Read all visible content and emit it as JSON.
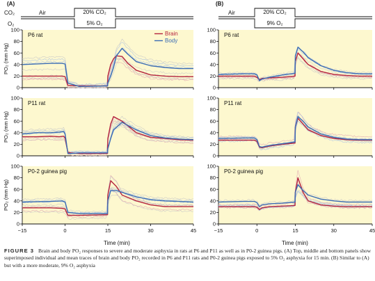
{
  "figure": {
    "panel_labels": [
      "(A)",
      "(B)"
    ],
    "protocol": {
      "a": {
        "gas_top": "CO₂",
        "gas_bottom": "O₂",
        "before_label": "Air",
        "co2_label": "20% CO₂",
        "o2_label": "5% O₂"
      },
      "b": {
        "before_label": "Air",
        "co2_label": "20% CO₂",
        "o2_label": "9% O₂"
      }
    },
    "y_axis_label": "PO₂ (mm Hg)",
    "x_axis_label": "Time (min)",
    "x_ticks": [
      "−15",
      "0",
      "15",
      "30",
      "45"
    ],
    "y_ticks": [
      "0",
      "20",
      "40",
      "60",
      "80",
      "100"
    ],
    "legend": {
      "brain": "Brain",
      "body": "Body"
    },
    "row_titles": [
      "P6 rat",
      "P11 rat",
      "P0-2 guinea pig"
    ],
    "colors": {
      "panel_bg": "#fdf8cf",
      "brain": "#b5243e",
      "body": "#3a6cb4",
      "brain_faint": "#e0a6b1",
      "body_faint": "#a9c1e3",
      "faint_gray": "#c8c8c8"
    }
  },
  "caption": {
    "label": "FIGURE 3",
    "text": "Brain and body PO₂ responses to severe and moderate asphyxia in rats at P6 and P11 as well as in P0-2 guinea pigs. (A) Top, middle and bottom panels show superimposed individual and mean traces of brain and body PO₂ recorded in P6 and P11 rats and P0-2 guinea pigs exposed to 5% O₂ asphyxia for 15 min. (B) Similar to (A) but with a more moderate, 9% O₂ asphyxia"
  },
  "chart_data": [
    {
      "type": "line",
      "panel": "A",
      "title": "P6 rat",
      "xlabel": "Time (min)",
      "ylabel": "PO₂ (mm Hg)",
      "xlim": [
        -15,
        45
      ],
      "ylim": [
        0,
        100
      ],
      "legend": "top-right",
      "series": [
        {
          "name": "Brain",
          "x": [
            -15,
            -5,
            -1,
            0,
            1,
            5,
            14.9,
            15,
            16,
            17,
            18,
            20,
            22,
            25,
            30,
            35,
            40,
            45
          ],
          "y": [
            20,
            20,
            20,
            19,
            4,
            3,
            3,
            20,
            40,
            50,
            55,
            54,
            42,
            30,
            22,
            20,
            19,
            19
          ]
        },
        {
          "name": "Body",
          "x": [
            -15,
            -5,
            -1,
            0,
            1,
            5,
            14.9,
            15,
            16,
            17,
            18,
            20,
            22,
            25,
            30,
            35,
            40,
            45
          ],
          "y": [
            40,
            42,
            42,
            41,
            8,
            2,
            3,
            8,
            20,
            35,
            55,
            68,
            58,
            45,
            38,
            35,
            33,
            33
          ]
        }
      ]
    },
    {
      "type": "line",
      "panel": "A",
      "title": "P11 rat",
      "xlabel": "Time (min)",
      "ylabel": "PO₂ (mm Hg)",
      "xlim": [
        -15,
        45
      ],
      "ylim": [
        0,
        100
      ],
      "series": [
        {
          "name": "Brain",
          "x": [
            -15,
            -10,
            -5,
            -2,
            -0.5,
            0,
            1,
            2,
            5,
            14.9,
            15,
            16,
            17,
            20,
            25,
            30,
            35,
            40,
            45
          ],
          "y": [
            33,
            33,
            34,
            33,
            34,
            31,
            6,
            5,
            4,
            4,
            30,
            55,
            68,
            60,
            40,
            32,
            30,
            28,
            27
          ]
        },
        {
          "name": "Body",
          "x": [
            -15,
            -10,
            -5,
            -2,
            -0.5,
            0,
            1,
            2,
            5,
            14.9,
            15,
            16,
            17,
            20,
            25,
            30,
            35,
            40,
            45
          ],
          "y": [
            38,
            40,
            40,
            41,
            42,
            38,
            4,
            4,
            5,
            5,
            12,
            30,
            45,
            58,
            45,
            35,
            31,
            29,
            28
          ]
        }
      ]
    },
    {
      "type": "line",
      "panel": "A",
      "title": "P0-2 guinea pig",
      "xlabel": "Time (min)",
      "ylabel": "PO₂ (mm Hg)",
      "xlim": [
        -15,
        45
      ],
      "ylim": [
        0,
        100
      ],
      "series": [
        {
          "name": "Brain",
          "x": [
            -15,
            -5,
            -1,
            0,
            1,
            5,
            14.9,
            15,
            16,
            18,
            20,
            25,
            30,
            35,
            40,
            45
          ],
          "y": [
            28,
            28,
            27,
            26,
            15,
            15,
            16,
            50,
            75,
            65,
            50,
            40,
            33,
            30,
            30,
            30
          ]
        },
        {
          "name": "Body",
          "x": [
            -15,
            -5,
            -1,
            0,
            1,
            5,
            14.9,
            15,
            16,
            18,
            20,
            25,
            30,
            35,
            40,
            45
          ],
          "y": [
            38,
            39,
            40,
            38,
            20,
            18,
            18,
            40,
            58,
            58,
            55,
            47,
            42,
            40,
            39,
            38
          ]
        }
      ]
    },
    {
      "type": "line",
      "panel": "B",
      "title": "P6 rat",
      "xlabel": "Time (min)",
      "ylabel": "PO₂ (mm Hg)",
      "xlim": [
        -15,
        45
      ],
      "ylim": [
        0,
        100
      ],
      "series": [
        {
          "name": "Brain",
          "x": [
            -15,
            -5,
            -1,
            0,
            1,
            2,
            5,
            10,
            14.9,
            15,
            16,
            18,
            20,
            25,
            30,
            35,
            40,
            45
          ],
          "y": [
            20,
            20,
            20,
            18,
            14,
            16,
            17,
            18,
            20,
            45,
            60,
            50,
            40,
            28,
            23,
            21,
            20,
            20
          ]
        },
        {
          "name": "Body",
          "x": [
            -15,
            -5,
            -1,
            0,
            1,
            2,
            5,
            10,
            14.9,
            15,
            16,
            18,
            20,
            25,
            30,
            35,
            40,
            45
          ],
          "y": [
            23,
            24,
            24,
            22,
            12,
            15,
            18,
            22,
            25,
            55,
            70,
            62,
            52,
            38,
            30,
            26,
            24,
            24
          ]
        }
      ]
    },
    {
      "type": "line",
      "panel": "B",
      "title": "P11 rat",
      "xlabel": "Time (min)",
      "ylabel": "PO₂ (mm Hg)",
      "xlim": [
        -15,
        45
      ],
      "ylim": [
        0,
        100
      ],
      "series": [
        {
          "name": "Brain",
          "x": [
            -15,
            -5,
            -1,
            0,
            1,
            2,
            5,
            10,
            14.9,
            15,
            16,
            18,
            20,
            25,
            30,
            35,
            40,
            45
          ],
          "y": [
            27,
            27,
            27,
            25,
            15,
            14,
            17,
            20,
            22,
            50,
            65,
            55,
            45,
            35,
            30,
            28,
            27,
            27
          ]
        },
        {
          "name": "Body",
          "x": [
            -15,
            -5,
            -1,
            0,
            1,
            2,
            5,
            10,
            14.9,
            15,
            16,
            18,
            20,
            25,
            30,
            35,
            40,
            45
          ],
          "y": [
            30,
            31,
            31,
            28,
            16,
            15,
            18,
            21,
            24,
            50,
            68,
            60,
            50,
            38,
            32,
            29,
            28,
            28
          ]
        }
      ]
    },
    {
      "type": "line",
      "panel": "B",
      "title": "P0-2 guinea pig",
      "xlabel": "Time (min)",
      "ylabel": "PO₂ (mm Hg)",
      "xlim": [
        -15,
        45
      ],
      "ylim": [
        0,
        100
      ],
      "series": [
        {
          "name": "Brain",
          "x": [
            -15,
            -5,
            -1,
            0,
            1,
            2,
            5,
            10,
            14.9,
            15,
            16,
            18,
            20,
            25,
            30,
            35,
            40,
            45
          ],
          "y": [
            30,
            30,
            30,
            29,
            25,
            28,
            30,
            31,
            32,
            55,
            80,
            55,
            40,
            33,
            31,
            30,
            30,
            30
          ]
        },
        {
          "name": "Body",
          "x": [
            -15,
            -5,
            -1,
            0,
            1,
            2,
            5,
            10,
            14.9,
            15,
            16,
            18,
            20,
            25,
            30,
            35,
            40,
            45
          ],
          "y": [
            38,
            39,
            39,
            37,
            30,
            33,
            35,
            36,
            38,
            55,
            68,
            58,
            50,
            43,
            40,
            38,
            38,
            38
          ]
        }
      ]
    }
  ]
}
